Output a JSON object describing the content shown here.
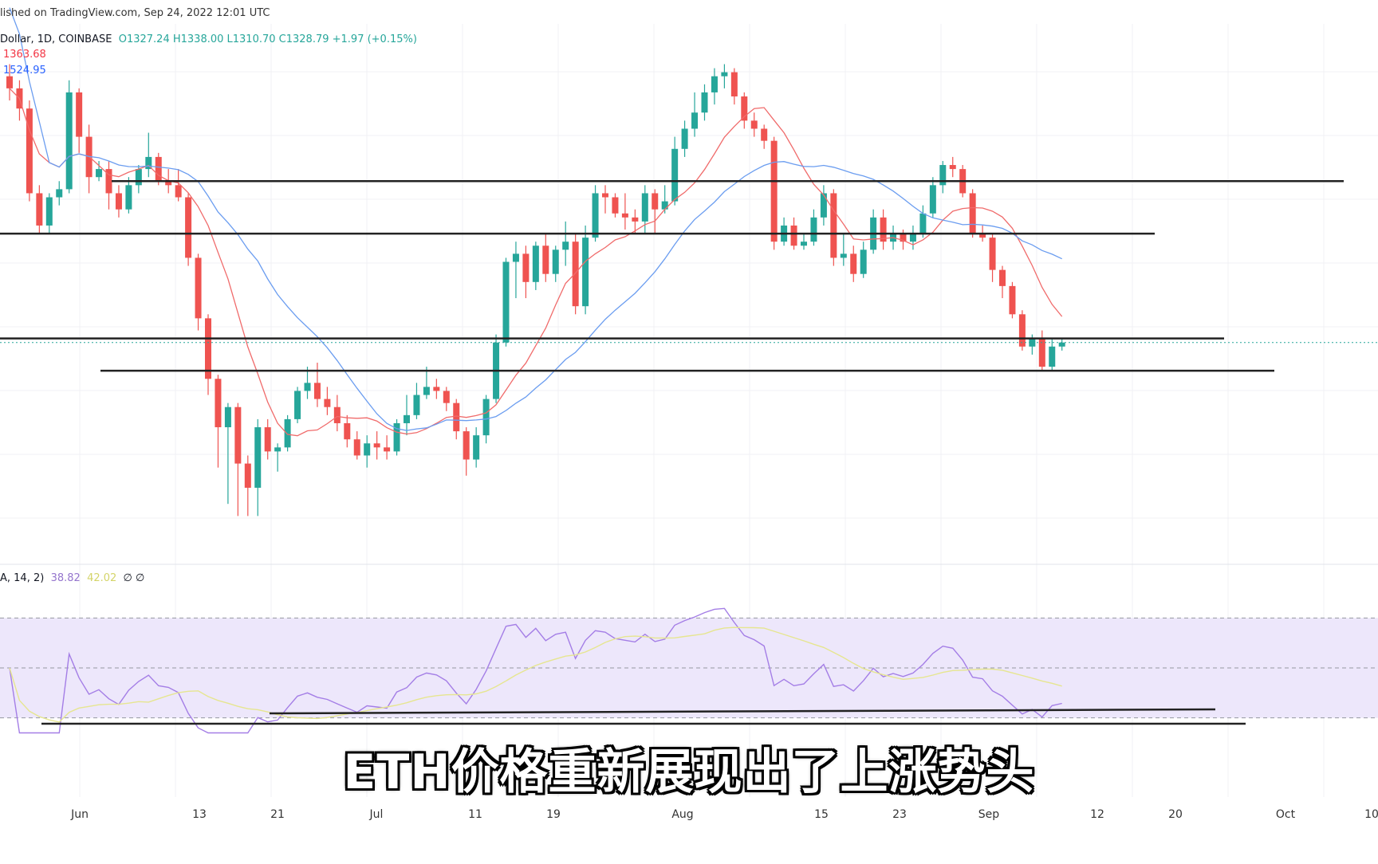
{
  "header": {
    "published": "lished on TradingView.com, Sep 24, 2022 12:01 UTC",
    "symbol_prefix": "Dollar, 1D, COINBASE",
    "ohlc": "O1327.24  H1338.00  L1310.70  C1328.79  +1.97 (+0.15%)",
    "ma_fast": "1363.68",
    "ma_slow": "1524.95",
    "rsi_label": "A, 14, 2)",
    "rsi_value": "38.82",
    "rsi_ma": "42.02",
    "rsi_extra": "∅ ∅"
  },
  "caption": "ETH价格重新展现出了上涨势头",
  "colors": {
    "up": "#26a69a",
    "down": "#ef5350",
    "ma_fast": "#f06b6b",
    "ma_slow": "#6b9df0",
    "rsi": "#a47ee6",
    "rsi_ma": "#e6e690",
    "rsi_band": "#ede7fb",
    "line": "#222222"
  },
  "chart_data": {
    "type": "candlestick",
    "title": "",
    "xlabel": "",
    "ylabel": "",
    "x_ticks": [
      "Jun",
      "13",
      "21",
      "Jul",
      "11",
      "19",
      "Aug",
      "15",
      "23",
      "Sep",
      "12",
      "20",
      "Oct",
      "10"
    ],
    "ylim": [
      800,
      2100
    ],
    "candles": [
      [
        1990,
        1960,
        2020,
        1930
      ],
      [
        1960,
        1910,
        1980,
        1880
      ],
      [
        1910,
        1700,
        1930,
        1680
      ],
      [
        1700,
        1620,
        1720,
        1600
      ],
      [
        1620,
        1690,
        1700,
        1600
      ],
      [
        1690,
        1710,
        1730,
        1670
      ],
      [
        1710,
        1950,
        1980,
        1700
      ],
      [
        1950,
        1840,
        1960,
        1800
      ],
      [
        1840,
        1740,
        1870,
        1700
      ],
      [
        1740,
        1760,
        1780,
        1730
      ],
      [
        1760,
        1700,
        1780,
        1660
      ],
      [
        1700,
        1660,
        1720,
        1640
      ],
      [
        1660,
        1720,
        1740,
        1650
      ],
      [
        1720,
        1760,
        1770,
        1700
      ],
      [
        1760,
        1790,
        1850,
        1740
      ],
      [
        1790,
        1730,
        1800,
        1720
      ],
      [
        1730,
        1720,
        1760,
        1700
      ],
      [
        1720,
        1690,
        1760,
        1680
      ],
      [
        1690,
        1540,
        1700,
        1520
      ],
      [
        1540,
        1390,
        1550,
        1360
      ],
      [
        1390,
        1240,
        1400,
        1200
      ],
      [
        1240,
        1120,
        1250,
        1020
      ],
      [
        1120,
        1170,
        1180,
        930
      ],
      [
        1170,
        1030,
        1180,
        900
      ],
      [
        1030,
        970,
        1050,
        900
      ],
      [
        970,
        1120,
        1140,
        900
      ],
      [
        1120,
        1060,
        1140,
        1040
      ],
      [
        1060,
        1070,
        1080,
        1010
      ],
      [
        1070,
        1140,
        1150,
        1060
      ],
      [
        1140,
        1210,
        1220,
        1130
      ],
      [
        1210,
        1230,
        1270,
        1190
      ],
      [
        1230,
        1190,
        1280,
        1170
      ],
      [
        1190,
        1170,
        1220,
        1150
      ],
      [
        1170,
        1130,
        1200,
        1110
      ],
      [
        1130,
        1090,
        1150,
        1070
      ],
      [
        1090,
        1050,
        1110,
        1040
      ],
      [
        1050,
        1080,
        1100,
        1020
      ],
      [
        1080,
        1070,
        1110,
        1040
      ],
      [
        1070,
        1060,
        1100,
        1040
      ],
      [
        1060,
        1130,
        1140,
        1050
      ],
      [
        1130,
        1150,
        1200,
        1100
      ],
      [
        1150,
        1200,
        1230,
        1140
      ],
      [
        1200,
        1220,
        1270,
        1190
      ],
      [
        1220,
        1210,
        1240,
        1190
      ],
      [
        1210,
        1180,
        1220,
        1160
      ],
      [
        1180,
        1110,
        1190,
        1090
      ],
      [
        1110,
        1040,
        1120,
        1000
      ],
      [
        1040,
        1100,
        1120,
        1020
      ],
      [
        1100,
        1190,
        1200,
        1080
      ],
      [
        1190,
        1330,
        1350,
        1180
      ],
      [
        1330,
        1530,
        1540,
        1320
      ],
      [
        1530,
        1550,
        1580,
        1440
      ],
      [
        1550,
        1480,
        1570,
        1440
      ],
      [
        1480,
        1570,
        1580,
        1460
      ],
      [
        1570,
        1500,
        1600,
        1480
      ],
      [
        1500,
        1560,
        1570,
        1480
      ],
      [
        1560,
        1580,
        1630,
        1520
      ],
      [
        1580,
        1420,
        1600,
        1400
      ],
      [
        1420,
        1590,
        1620,
        1400
      ],
      [
        1590,
        1700,
        1720,
        1580
      ],
      [
        1700,
        1690,
        1720,
        1650
      ],
      [
        1690,
        1650,
        1700,
        1640
      ],
      [
        1650,
        1640,
        1700,
        1610
      ],
      [
        1640,
        1630,
        1660,
        1600
      ],
      [
        1630,
        1700,
        1720,
        1600
      ],
      [
        1700,
        1660,
        1710,
        1600
      ],
      [
        1660,
        1680,
        1720,
        1650
      ],
      [
        1680,
        1810,
        1840,
        1670
      ],
      [
        1810,
        1860,
        1880,
        1790
      ],
      [
        1860,
        1900,
        1950,
        1840
      ],
      [
        1900,
        1950,
        1970,
        1880
      ],
      [
        1950,
        1990,
        2010,
        1920
      ],
      [
        1990,
        2000,
        2020,
        1960
      ],
      [
        2000,
        1940,
        2010,
        1920
      ],
      [
        1940,
        1880,
        1950,
        1860
      ],
      [
        1880,
        1860,
        1900,
        1840
      ],
      [
        1860,
        1830,
        1870,
        1810
      ],
      [
        1830,
        1580,
        1840,
        1560
      ],
      [
        1580,
        1620,
        1640,
        1570
      ],
      [
        1620,
        1570,
        1640,
        1560
      ],
      [
        1570,
        1580,
        1600,
        1560
      ],
      [
        1580,
        1640,
        1660,
        1570
      ],
      [
        1640,
        1700,
        1720,
        1620
      ],
      [
        1700,
        1540,
        1710,
        1520
      ],
      [
        1540,
        1550,
        1600,
        1520
      ],
      [
        1550,
        1500,
        1570,
        1480
      ],
      [
        1500,
        1560,
        1580,
        1490
      ],
      [
        1560,
        1640,
        1660,
        1550
      ],
      [
        1640,
        1580,
        1660,
        1560
      ],
      [
        1580,
        1600,
        1620,
        1560
      ],
      [
        1600,
        1580,
        1610,
        1560
      ],
      [
        1580,
        1600,
        1620,
        1560
      ],
      [
        1600,
        1650,
        1670,
        1590
      ],
      [
        1650,
        1720,
        1740,
        1640
      ],
      [
        1720,
        1770,
        1780,
        1700
      ],
      [
        1770,
        1760,
        1790,
        1740
      ],
      [
        1760,
        1700,
        1770,
        1690
      ],
      [
        1700,
        1600,
        1710,
        1590
      ],
      [
        1600,
        1590,
        1620,
        1580
      ],
      [
        1590,
        1510,
        1600,
        1480
      ],
      [
        1510,
        1470,
        1520,
        1440
      ],
      [
        1470,
        1400,
        1480,
        1390
      ],
      [
        1400,
        1320,
        1410,
        1310
      ],
      [
        1320,
        1340,
        1350,
        1300
      ],
      [
        1340,
        1270,
        1360,
        1260
      ],
      [
        1270,
        1320,
        1340,
        1260
      ],
      [
        1320,
        1330,
        1340,
        1310
      ]
    ],
    "horizontal_levels": [
      1730,
      1600,
      1340,
      1260
    ],
    "rsi": {
      "title": "",
      "value": 38.82,
      "ma": 42.02,
      "upper_band": 70,
      "lower_band": 30
    }
  }
}
